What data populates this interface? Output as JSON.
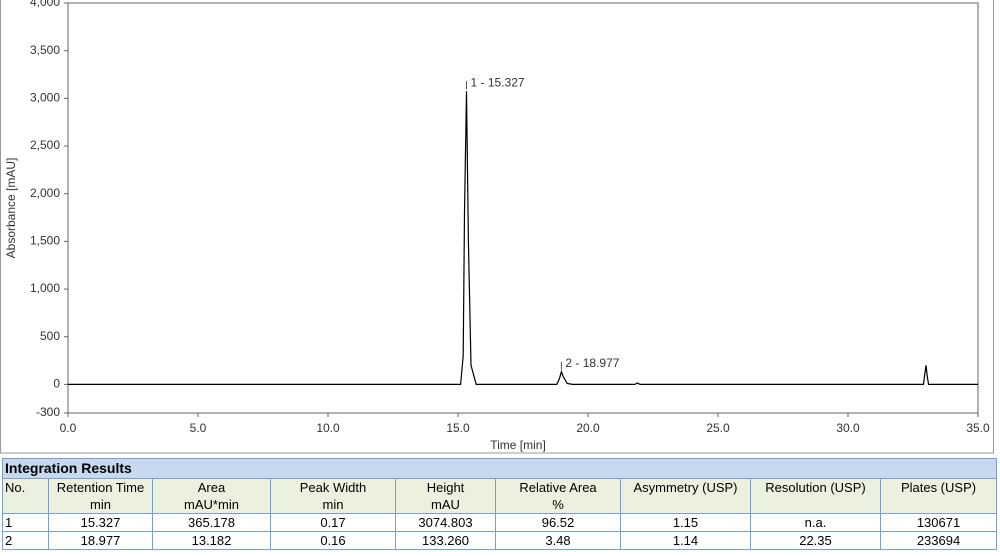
{
  "chart_data": {
    "type": "line",
    "xlabel": "Time [min]",
    "ylabel": "Absorbance [mAU]",
    "x": [
      0,
      15.1,
      15.2,
      15.25,
      15.327,
      15.4,
      15.5,
      15.7,
      18.8,
      18.9,
      18.977,
      19.05,
      19.2,
      19.4,
      21.8,
      21.9,
      22.0,
      32.9,
      32.95,
      33.0,
      33.05,
      33.1,
      35
    ],
    "values": [
      0,
      0,
      300,
      1800,
      3075,
      1500,
      200,
      0,
      0,
      60,
      133,
      80,
      10,
      0,
      0,
      15,
      0,
      0,
      100,
      200,
      80,
      0,
      0
    ],
    "color": "#000000",
    "xlim": [
      0,
      35
    ],
    "xticks": [
      {
        "value": 0,
        "label": "0.0"
      },
      {
        "value": 5,
        "label": "5.0"
      },
      {
        "value": 10,
        "label": "10.0"
      },
      {
        "value": 15,
        "label": "15.0"
      },
      {
        "value": 20,
        "label": "20.0"
      },
      {
        "value": 25,
        "label": "25.0"
      },
      {
        "value": 30,
        "label": "30.0"
      },
      {
        "value": 35,
        "label": "35.0"
      }
    ],
    "ylim": [
      -300,
      4000
    ],
    "yticks": [
      -300,
      0,
      500,
      {
        "value": 1000,
        "label": "1,000"
      },
      {
        "value": 1500,
        "label": "1,500"
      },
      {
        "value": 2000,
        "label": "2,000"
      },
      {
        "value": 2500,
        "label": "2,500"
      },
      {
        "value": 3000,
        "label": "3,000"
      },
      {
        "value": 3500,
        "label": "3,500"
      },
      {
        "value": 4000,
        "label": "4,000"
      }
    ],
    "grid": false,
    "annotations": [
      {
        "label": "1 - 15.327",
        "x": 15.327,
        "y": 3075
      },
      {
        "label": "2 - 18.977",
        "x": 18.977,
        "y": 133
      }
    ]
  },
  "table": {
    "title": "Integration Results",
    "header": [
      {
        "name": "No."
      },
      {
        "name": "Retention Time",
        "unit": "min"
      },
      {
        "name": "Area",
        "unit": "mAU*min"
      },
      {
        "name": "Peak Width",
        "unit": "min"
      },
      {
        "name": "Height",
        "unit": "mAU"
      },
      {
        "name": "Relative Area",
        "unit": "%"
      },
      {
        "name": "Asymmetry (USP)"
      },
      {
        "name": "Resolution (USP)"
      },
      {
        "name": "Plates (USP)"
      }
    ],
    "rows": [
      [
        "1",
        "15.327",
        "365.178",
        "0.17",
        "3074.803",
        "96.52",
        "1.15",
        "n.a.",
        "130671"
      ],
      [
        "2",
        "18.977",
        "13.182",
        "0.16",
        "133.260",
        "3.48",
        "1.14",
        "22.35",
        "233694"
      ]
    ]
  }
}
